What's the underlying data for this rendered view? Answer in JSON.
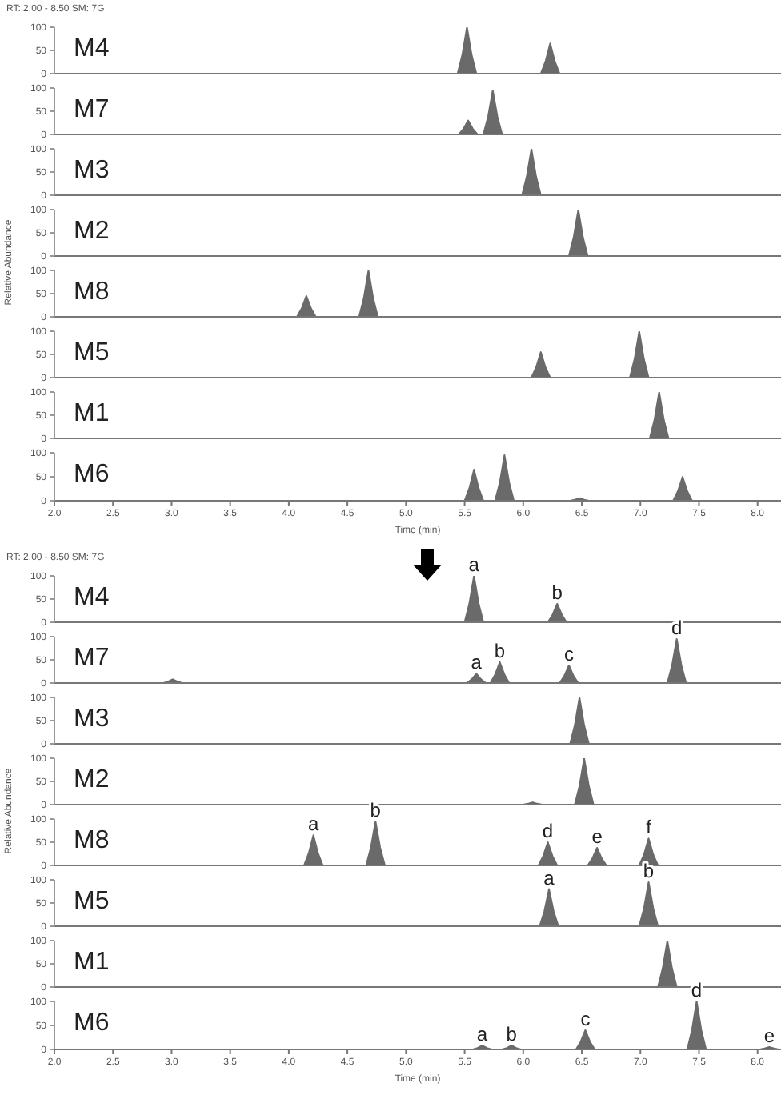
{
  "chart_data": [
    {
      "type": "area",
      "subtitle": "RT: 2.00 - 8.50  SM: 7G",
      "title": "M4",
      "color": "#6a6a6a",
      "xlim": [
        2.0,
        8.2
      ],
      "ylim": [
        0,
        100
      ],
      "yticks": [
        0,
        50,
        100
      ],
      "tick_labels": "y",
      "x": [
        2.0,
        5.44,
        5.48,
        5.52,
        5.56,
        5.6,
        6.15,
        6.19,
        6.23,
        6.27,
        6.31,
        8.2
      ],
      "values": [
        0,
        0,
        40,
        100,
        40,
        0,
        0,
        26,
        65,
        26,
        0,
        0
      ]
    },
    {
      "type": "area",
      "title": "M7",
      "color": "#6a6a6a",
      "xlim": [
        2.0,
        8.2
      ],
      "ylim": [
        0,
        100
      ],
      "yticks": [
        0,
        50,
        100
      ],
      "tick_labels": "y",
      "x": [
        2.0,
        5.45,
        5.49,
        5.53,
        5.57,
        5.61,
        5.66,
        5.7,
        5.74,
        5.78,
        5.82,
        8.2
      ],
      "values": [
        0,
        0,
        12,
        30,
        12,
        0,
        0,
        38,
        95,
        38,
        0,
        0
      ]
    },
    {
      "type": "area",
      "title": "M3",
      "color": "#6a6a6a",
      "xlim": [
        2.0,
        8.2
      ],
      "ylim": [
        0,
        100
      ],
      "yticks": [
        0,
        50,
        100
      ],
      "tick_labels": "y",
      "x": [
        2.0,
        5.99,
        6.03,
        6.07,
        6.11,
        6.15,
        8.2
      ],
      "values": [
        0,
        0,
        40,
        100,
        40,
        0,
        0
      ]
    },
    {
      "type": "area",
      "title": "M2",
      "ylabel": "Relative Abundance",
      "color": "#6a6a6a",
      "xlim": [
        2.0,
        8.2
      ],
      "ylim": [
        0,
        100
      ],
      "yticks": [
        0,
        50,
        100
      ],
      "tick_labels": "y",
      "x": [
        2.0,
        6.39,
        6.43,
        6.47,
        6.51,
        6.55,
        8.2
      ],
      "values": [
        0,
        0,
        40,
        100,
        40,
        0,
        0
      ]
    },
    {
      "type": "area",
      "title": "M8",
      "color": "#6a6a6a",
      "xlim": [
        2.0,
        8.2
      ],
      "ylim": [
        0,
        100
      ],
      "yticks": [
        0,
        50,
        100
      ],
      "tick_labels": "y",
      "x": [
        2.0,
        4.07,
        4.11,
        4.15,
        4.19,
        4.23,
        4.6,
        4.64,
        4.68,
        4.72,
        4.76,
        8.2
      ],
      "values": [
        0,
        0,
        18,
        45,
        18,
        0,
        0,
        40,
        100,
        40,
        0,
        0
      ]
    },
    {
      "type": "area",
      "title": "M5",
      "color": "#6a6a6a",
      "xlim": [
        2.0,
        8.2
      ],
      "ylim": [
        0,
        100
      ],
      "yticks": [
        0,
        50,
        100
      ],
      "tick_labels": "y",
      "x": [
        2.0,
        6.07,
        6.11,
        6.15,
        6.19,
        6.23,
        6.91,
        6.95,
        6.99,
        7.03,
        7.07,
        8.2
      ],
      "values": [
        0,
        0,
        22,
        55,
        22,
        0,
        0,
        40,
        100,
        40,
        0,
        0
      ]
    },
    {
      "type": "area",
      "title": "M1",
      "color": "#6a6a6a",
      "xlim": [
        2.0,
        8.2
      ],
      "ylim": [
        0,
        100
      ],
      "yticks": [
        0,
        50,
        100
      ],
      "tick_labels": "y",
      "x": [
        2.0,
        7.08,
        7.12,
        7.16,
        7.2,
        7.24,
        8.2
      ],
      "values": [
        0,
        0,
        40,
        100,
        40,
        0,
        0
      ]
    },
    {
      "type": "area",
      "title": "M6",
      "xlabel": "Time (min)",
      "color": "#6a6a6a",
      "xlim": [
        2.0,
        8.2
      ],
      "ylim": [
        0,
        100
      ],
      "yticks": [
        0,
        50,
        100
      ],
      "xticks": [
        {
          "value": 2,
          "label": "2.0"
        },
        2.5,
        {
          "value": 3,
          "label": "3.0"
        },
        3.5,
        {
          "value": 4,
          "label": "4.0"
        },
        4.5,
        {
          "value": 5,
          "label": "5.0"
        },
        5.5,
        {
          "value": 6,
          "label": "6.0"
        },
        6.5,
        {
          "value": 7,
          "label": "7.0"
        },
        7.5,
        {
          "value": 8,
          "label": "8.0"
        }
      ],
      "x": [
        2.0,
        5.5,
        5.54,
        5.58,
        5.62,
        5.66,
        5.76,
        5.8,
        5.84,
        5.88,
        5.92,
        6.4,
        6.44,
        6.48,
        6.52,
        6.56,
        7.28,
        7.32,
        7.36,
        7.4,
        7.44,
        8.2
      ],
      "values": [
        0,
        0,
        26,
        65,
        26,
        0,
        0,
        38,
        95,
        38,
        0,
        0,
        2,
        5,
        2,
        0,
        0,
        20,
        50,
        20,
        0,
        0
      ]
    },
    {
      "type": "area",
      "subtitle": "RT: 2.00 - 8.50  SM: 7G",
      "title": "M4",
      "color": "#6a6a6a",
      "xlim": [
        2.0,
        8.2
      ],
      "ylim": [
        0,
        100
      ],
      "yticks": [
        0,
        50,
        100
      ],
      "tick_labels": "y",
      "x": [
        2.0,
        5.5,
        5.54,
        5.58,
        5.62,
        5.66,
        6.21,
        6.25,
        6.29,
        6.33,
        6.37,
        8.2
      ],
      "values": [
        0,
        0,
        40,
        100,
        40,
        0,
        0,
        16,
        40,
        16,
        0,
        0
      ],
      "annotations": [
        {
          "text": "a",
          "x": 5.58,
          "y": 100
        },
        {
          "text": "b",
          "x": 6.29,
          "y": 40
        }
      ]
    },
    {
      "type": "area",
      "title": "M7",
      "color": "#6a6a6a",
      "xlim": [
        2.0,
        8.2
      ],
      "ylim": [
        0,
        100
      ],
      "yticks": [
        0,
        50,
        100
      ],
      "tick_labels": "y",
      "x": [
        2.0,
        2.93,
        2.97,
        3.01,
        3.05,
        3.09,
        5.52,
        5.56,
        5.6,
        5.64,
        5.68,
        5.72,
        5.76,
        5.8,
        5.84,
        5.88,
        6.31,
        6.35,
        6.39,
        6.43,
        6.47,
        7.23,
        7.27,
        7.31,
        7.35,
        7.39,
        8.2
      ],
      "values": [
        0,
        0,
        3,
        8,
        3,
        0,
        0,
        8,
        20,
        8,
        0,
        0,
        18,
        45,
        18,
        0,
        0,
        15,
        38,
        15,
        0,
        0,
        38,
        95,
        38,
        0,
        0
      ],
      "annotations": [
        {
          "text": "a",
          "x": 5.6,
          "y": 20
        },
        {
          "text": "b",
          "x": 5.8,
          "y": 45
        },
        {
          "text": "c",
          "x": 6.39,
          "y": 38
        },
        {
          "text": "d",
          "x": 7.31,
          "y": 95
        }
      ]
    },
    {
      "type": "area",
      "title": "M3",
      "color": "#6a6a6a",
      "xlim": [
        2.0,
        8.2
      ],
      "ylim": [
        0,
        100
      ],
      "yticks": [
        0,
        50,
        100
      ],
      "tick_labels": "y",
      "x": [
        2.0,
        6.4,
        6.44,
        6.48,
        6.52,
        6.56,
        8.2
      ],
      "values": [
        0,
        0,
        40,
        100,
        40,
        0,
        0
      ]
    },
    {
      "type": "area",
      "title": "M2",
      "ylabel": "Relative Abundance",
      "color": "#6a6a6a",
      "xlim": [
        2.0,
        8.2
      ],
      "ylim": [
        0,
        100
      ],
      "yticks": [
        0,
        50,
        100
      ],
      "tick_labels": "y",
      "x": [
        2.0,
        6.0,
        6.04,
        6.08,
        6.12,
        6.16,
        6.44,
        6.48,
        6.52,
        6.56,
        6.6,
        8.2
      ],
      "values": [
        0,
        0,
        2,
        5,
        2,
        0,
        0,
        40,
        100,
        40,
        0,
        0
      ]
    },
    {
      "type": "area",
      "title": "M8",
      "color": "#6a6a6a",
      "xlim": [
        2.0,
        8.2
      ],
      "ylim": [
        0,
        100
      ],
      "yticks": [
        0,
        50,
        100
      ],
      "tick_labels": "y",
      "x": [
        2.0,
        4.13,
        4.17,
        4.21,
        4.25,
        4.29,
        4.66,
        4.7,
        4.74,
        4.78,
        4.82,
        6.13,
        6.17,
        6.21,
        6.25,
        6.29,
        6.55,
        6.59,
        6.63,
        6.67,
        6.71,
        6.99,
        7.03,
        7.07,
        7.11,
        7.15,
        8.2
      ],
      "values": [
        0,
        0,
        26,
        65,
        26,
        0,
        0,
        38,
        95,
        38,
        0,
        0,
        20,
        50,
        20,
        0,
        0,
        15,
        38,
        15,
        0,
        0,
        23,
        58,
        23,
        0,
        0
      ],
      "annotations": [
        {
          "text": "a",
          "x": 4.21,
          "y": 65
        },
        {
          "text": "b",
          "x": 4.74,
          "y": 95
        },
        {
          "text": "d",
          "x": 6.21,
          "y": 50
        },
        {
          "text": "e",
          "x": 6.63,
          "y": 38
        },
        {
          "text": "f",
          "x": 7.07,
          "y": 58
        }
      ]
    },
    {
      "type": "area",
      "title": "M5",
      "color": "#6a6a6a",
      "xlim": [
        2.0,
        8.2
      ],
      "ylim": [
        0,
        100
      ],
      "yticks": [
        0,
        50,
        100
      ],
      "tick_labels": "y",
      "x": [
        2.0,
        6.14,
        6.18,
        6.22,
        6.26,
        6.3,
        6.99,
        7.03,
        7.07,
        7.11,
        7.15,
        8.2
      ],
      "values": [
        0,
        0,
        32,
        80,
        32,
        0,
        0,
        38,
        95,
        38,
        0,
        0
      ],
      "annotations": [
        {
          "text": "a",
          "x": 6.22,
          "y": 80
        },
        {
          "text": "b",
          "x": 7.07,
          "y": 95
        }
      ]
    },
    {
      "type": "area",
      "title": "M1",
      "color": "#6a6a6a",
      "xlim": [
        2.0,
        8.2
      ],
      "ylim": [
        0,
        100
      ],
      "yticks": [
        0,
        50,
        100
      ],
      "tick_labels": "y",
      "x": [
        2.0,
        7.15,
        7.19,
        7.23,
        7.27,
        7.31,
        8.2
      ],
      "values": [
        0,
        0,
        40,
        100,
        40,
        0,
        0
      ]
    },
    {
      "type": "area",
      "title": "M6",
      "xlabel": "Time (min)",
      "color": "#6a6a6a",
      "xlim": [
        2.0,
        8.2
      ],
      "ylim": [
        0,
        100
      ],
      "yticks": [
        0,
        50,
        100
      ],
      "xticks": [
        {
          "value": 2,
          "label": "2.0"
        },
        2.5,
        {
          "value": 3,
          "label": "3.0"
        },
        3.5,
        {
          "value": 4,
          "label": "4.0"
        },
        4.5,
        {
          "value": 5,
          "label": "5.0"
        },
        5.5,
        {
          "value": 6,
          "label": "6.0"
        },
        6.5,
        {
          "value": 7,
          "label": "7.0"
        },
        7.5,
        {
          "value": 8,
          "label": "8.0"
        }
      ],
      "x": [
        2.0,
        5.57,
        5.61,
        5.65,
        5.69,
        5.73,
        5.82,
        5.86,
        5.9,
        5.94,
        5.98,
        6.45,
        6.49,
        6.53,
        6.57,
        6.61,
        7.4,
        7.44,
        7.48,
        7.52,
        7.56,
        8.02,
        8.06,
        8.1,
        8.14,
        8.18,
        8.2
      ],
      "values": [
        0,
        0,
        3,
        8,
        3,
        0,
        0,
        3,
        8,
        3,
        0,
        0,
        16,
        40,
        16,
        0,
        0,
        40,
        100,
        40,
        0,
        0,
        2,
        5,
        2,
        0,
        0
      ],
      "annotations": [
        {
          "text": "a",
          "x": 5.65,
          "y": 8
        },
        {
          "text": "b",
          "x": 5.9,
          "y": 8
        },
        {
          "text": "c",
          "x": 6.53,
          "y": 40
        },
        {
          "text": "d",
          "x": 7.48,
          "y": 100
        },
        {
          "text": "e",
          "x": 8.1,
          "y": 5
        }
      ]
    }
  ]
}
